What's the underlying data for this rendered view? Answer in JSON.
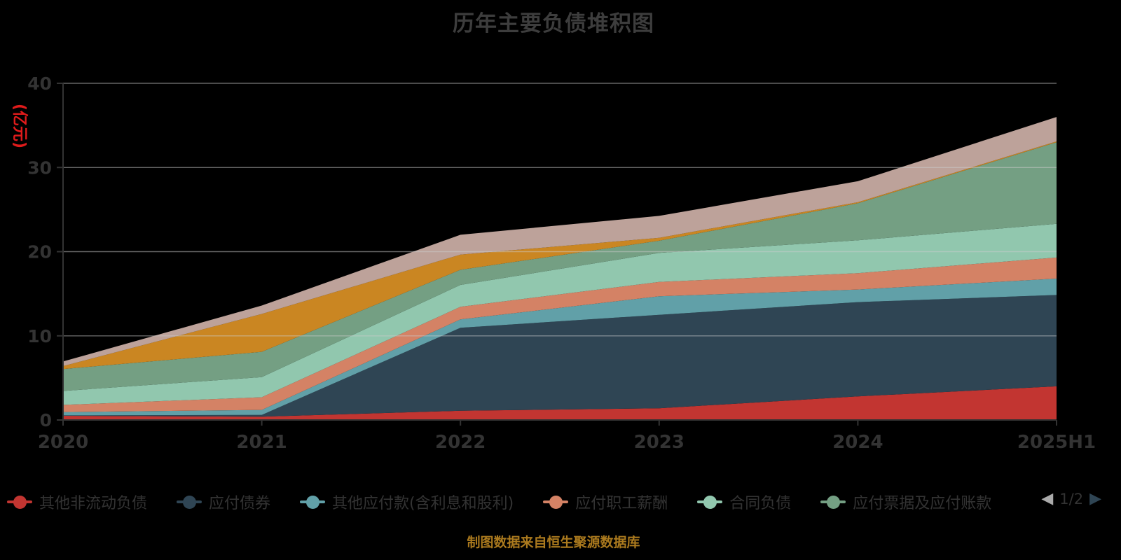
{
  "title": "历年主要负债堆积图",
  "colors": {
    "background": "#000000",
    "axis_line": "#333333",
    "grid_line": "#cccccc",
    "axis_text": "#333333",
    "title_text": "#3d3d3d",
    "y_axis_name_text": "#e01b1b",
    "caption_text": "#ab7a1e",
    "pager_prev_disabled": "#aaaaaa",
    "pager_next_active": "#2f4554"
  },
  "y_axis": {
    "name": "(亿元)",
    "tick_labels": [
      "0",
      "10",
      "20",
      "30",
      "40"
    ],
    "tick_step": 10,
    "min": 0,
    "max": 40
  },
  "x_axis": {
    "tick_labels": [
      "2020",
      "2021",
      "2022",
      "2023",
      "2024",
      "2025H1"
    ]
  },
  "legend": {
    "items": [
      {
        "label": "其他非流动负债",
        "color": "#c23531"
      },
      {
        "label": "应付债券",
        "color": "#2f4554"
      },
      {
        "label": "其他应付款(含利息和股利)",
        "color": "#61a0a8"
      },
      {
        "label": "应付职工薪酬",
        "color": "#d48265"
      },
      {
        "label": "合同负债",
        "color": "#91c7ae"
      },
      {
        "label": "应付票据及应付账款",
        "color": "#749f83"
      }
    ],
    "pager": {
      "prev_arrow": "◀",
      "page_text": "1/2",
      "next_arrow": "▶"
    }
  },
  "caption": "制图数据来自恒生聚源数据库",
  "chart_data": {
    "type": "area",
    "stacked": true,
    "grid": true,
    "legend_position": "bottom",
    "categories": [
      "2020",
      "2021",
      "2022",
      "2023",
      "2024",
      "2025H1"
    ],
    "ylabel": "(亿元)",
    "ylim": [
      0,
      40
    ],
    "series": [
      {
        "name": "其他非流动负债",
        "color": "#c23531",
        "values": [
          0.5,
          0.4,
          1.1,
          1.4,
          2.8,
          4.0
        ]
      },
      {
        "name": "应付债券",
        "color": "#2f4554",
        "values": [
          0.05,
          0.2,
          9.85,
          11.1,
          11.2,
          10.85
        ]
      },
      {
        "name": "其他应付款(含利息和股利)",
        "color": "#61a0a8",
        "values": [
          0.4,
          0.6,
          1.0,
          2.2,
          1.5,
          1.95
        ]
      },
      {
        "name": "应付职工薪酬",
        "color": "#d48265",
        "values": [
          0.85,
          1.5,
          1.5,
          1.7,
          1.95,
          2.5
        ]
      },
      {
        "name": "合同负债",
        "color": "#91c7ae",
        "values": [
          1.65,
          2.4,
          2.6,
          3.45,
          3.9,
          4.0
        ]
      },
      {
        "name": "应付票据及应付账款",
        "color": "#749f83",
        "values": [
          2.6,
          3.0,
          1.8,
          1.45,
          4.4,
          9.7
        ]
      },
      {
        "name": "",
        "color": "#ca8622",
        "values": [
          0.35,
          4.5,
          1.8,
          0.35,
          0.12,
          0.1
        ]
      },
      {
        "name": "",
        "color": "#bda29a",
        "values": [
          0.55,
          1.0,
          2.35,
          2.6,
          2.5,
          2.9
        ]
      }
    ]
  }
}
